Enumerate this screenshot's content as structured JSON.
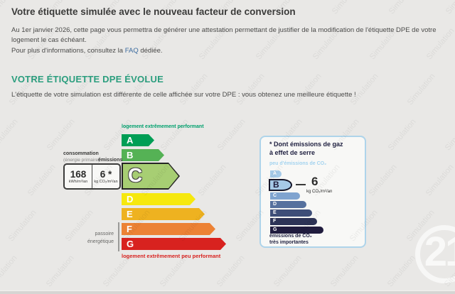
{
  "page": {
    "background": "#e9e8e6",
    "title": "Votre étiquette simulée avec le nouveau facteur de conversion",
    "intro": "Au 1er janvier 2026, cette page vous permettra de générer une attestation permettant de justifier de la modification de l'étiquette DPE de votre logement le cas échéant.",
    "faq_prefix": "Pour plus d'informations, consultez la ",
    "faq_link": "FAQ",
    "faq_suffix": " dédiée."
  },
  "section": {
    "heading": "VOTRE ÉTIQUETTE DPE ÉVOLUE",
    "heading_color": "#2b9e7e",
    "text": "L'étiquette de votre simulation est différente de celle affichée sur votre DPE : vous obtenez une meilleure étiquette !"
  },
  "dpe_label": {
    "top_caption": "logement extrêmement performant",
    "bottom_caption": "logement extrêmement peu performant",
    "consumption_title": "consommation",
    "consumption_subtitle": "(énergie primaire)",
    "emissions_title": "émissions",
    "consumption_value": "168",
    "consumption_unit": "kWh/m²/an",
    "emissions_value": "6 *",
    "emissions_unit": "kg CO₂/m²/an",
    "sieve_line1": "passoire",
    "sieve_line2": "énergétique",
    "current_letter": "C",
    "bars": [
      {
        "letter": "A",
        "color": "#009e55",
        "width": 46
      },
      {
        "letter": "B",
        "color": "#55b255",
        "width": 60
      },
      {
        "letter": "C",
        "color": "#a7ce73",
        "width": 82,
        "highlighted": true
      },
      {
        "letter": "D",
        "color": "#f6e80d",
        "width": 104
      },
      {
        "letter": "E",
        "color": "#eeb220",
        "width": 117
      },
      {
        "letter": "F",
        "color": "#ec8235",
        "width": 132
      },
      {
        "letter": "G",
        "color": "#d8221f",
        "width": 147
      }
    ]
  },
  "ges_box": {
    "title_line1": "* Dont émissions de gaz",
    "title_line2": "à effet de serre",
    "low_caption": "peu d'émissions de CO₂",
    "high_caption_line1": "émissions de CO₂",
    "high_caption_line2": "très importantes",
    "value": "6",
    "unit": "kg CO₂/m²/an",
    "current_letter": "B",
    "bars": [
      {
        "letter": "A",
        "color": "#a6cbe9",
        "width": 16
      },
      {
        "letter": "B",
        "color": "#a6c9e7",
        "width": 33,
        "highlighted": true
      },
      {
        "letter": "C",
        "color": "#7fa3cf",
        "width": 42
      },
      {
        "letter": "D",
        "color": "#56719e",
        "width": 51
      },
      {
        "letter": "E",
        "color": "#3e4e78",
        "width": 59
      },
      {
        "letter": "F",
        "color": "#2d3356",
        "width": 66
      },
      {
        "letter": "G",
        "color": "#201c3e",
        "width": 75
      }
    ]
  },
  "watermark": {
    "text": "Simulation"
  },
  "logo": {
    "text": "21"
  }
}
